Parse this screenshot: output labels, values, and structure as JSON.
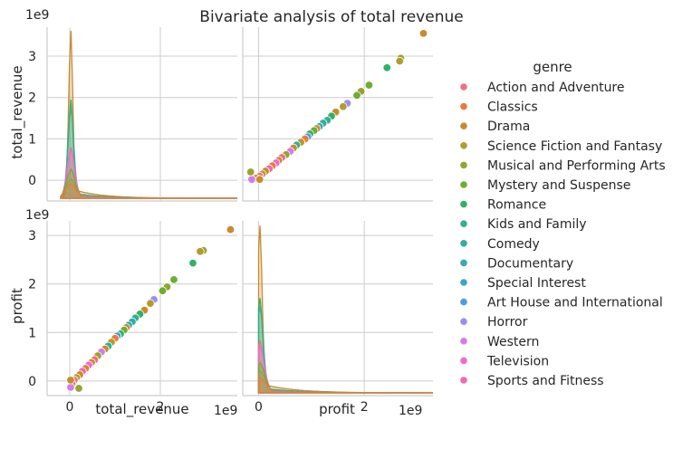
{
  "chart_data": {
    "type": "scatter",
    "title": "Bivariate  analysis of total revenue",
    "variables": [
      "total_revenue",
      "profit"
    ],
    "offset_label": "1e9",
    "x_ticks": [
      0,
      2
    ],
    "total_revenue_ticks": [
      0,
      1,
      2,
      3
    ],
    "profit_ticks": [
      0,
      1,
      2,
      3
    ],
    "ranges": {
      "total_revenue": [
        -0.5,
        3.7
      ],
      "profit": [
        -0.3,
        3.3
      ]
    },
    "grid": true,
    "legend": {
      "title": "genre",
      "placement": "right",
      "entries": [
        {
          "name": "Action and Adventure",
          "color": "#f0717e"
        },
        {
          "name": "Classics",
          "color": "#e57d3d"
        },
        {
          "name": "Drama",
          "color": "#c98b2f"
        },
        {
          "name": "Science Fiction and Fantasy",
          "color": "#b39b2e"
        },
        {
          "name": "Musical and Performing Arts",
          "color": "#97a432"
        },
        {
          "name": "Mystery and Suspense",
          "color": "#6ead34"
        },
        {
          "name": "Romance",
          "color": "#33b067"
        },
        {
          "name": "Kids and Family",
          "color": "#35ae94"
        },
        {
          "name": "Comedy",
          "color": "#37ab9f"
        },
        {
          "name": "Documentary",
          "color": "#39a8b0"
        },
        {
          "name": "Special Interest",
          "color": "#3ca5c5"
        },
        {
          "name": "Art House and International",
          "color": "#4a9de0"
        },
        {
          "name": "Horror",
          "color": "#9b8ef0"
        },
        {
          "name": "Western",
          "color": "#d67be8"
        },
        {
          "name": "Television",
          "color": "#f16ad1"
        },
        {
          "name": "Sports and Fitness",
          "color": "#f06ba9"
        }
      ]
    },
    "scatter_points": [
      {
        "total_revenue": 3.55,
        "profit": 3.12,
        "genre": "Drama"
      },
      {
        "total_revenue": 2.95,
        "profit": 2.69,
        "genre": "Musical and Performing Arts"
      },
      {
        "total_revenue": 2.88,
        "profit": 2.67,
        "genre": "Science Fiction and Fantasy"
      },
      {
        "total_revenue": 2.72,
        "profit": 2.43,
        "genre": "Romance"
      },
      {
        "total_revenue": 2.3,
        "profit": 2.09,
        "genre": "Mystery and Suspense"
      },
      {
        "total_revenue": 2.15,
        "profit": 1.94,
        "genre": "Musical and Performing Arts"
      },
      {
        "total_revenue": 2.05,
        "profit": 1.86,
        "genre": "Mystery and Suspense"
      },
      {
        "total_revenue": 1.86,
        "profit": 1.68,
        "genre": "Horror"
      },
      {
        "total_revenue": 1.78,
        "profit": 1.6,
        "genre": "Science Fiction and Fantasy"
      },
      {
        "total_revenue": 1.65,
        "profit": 1.46,
        "genre": "Drama"
      },
      {
        "total_revenue": 1.55,
        "profit": 1.38,
        "genre": "Romance"
      },
      {
        "total_revenue": 1.45,
        "profit": 1.3,
        "genre": "Kids and Family"
      },
      {
        "total_revenue": 1.38,
        "profit": 1.22,
        "genre": "Comedy"
      },
      {
        "total_revenue": 1.3,
        "profit": 1.15,
        "genre": "Documentary"
      },
      {
        "total_revenue": 1.25,
        "profit": 1.1,
        "genre": "Drama"
      },
      {
        "total_revenue": 1.2,
        "profit": 1.05,
        "genre": "Mystery and Suspense"
      },
      {
        "total_revenue": 1.12,
        "profit": 0.97,
        "genre": "Romance"
      },
      {
        "total_revenue": 1.05,
        "profit": 0.93,
        "genre": "Art House and International"
      },
      {
        "total_revenue": 1.0,
        "profit": 0.88,
        "genre": "Classics"
      },
      {
        "total_revenue": 0.92,
        "profit": 0.8,
        "genre": "Science Fiction and Fantasy"
      },
      {
        "total_revenue": 0.85,
        "profit": 0.72,
        "genre": "Kids and Family"
      },
      {
        "total_revenue": 0.78,
        "profit": 0.66,
        "genre": "Drama"
      },
      {
        "total_revenue": 0.7,
        "profit": 0.6,
        "genre": "Western"
      },
      {
        "total_revenue": 0.62,
        "profit": 0.52,
        "genre": "Musical and Performing Arts"
      },
      {
        "total_revenue": 0.55,
        "profit": 0.44,
        "genre": "Action and Adventure"
      },
      {
        "total_revenue": 0.48,
        "profit": 0.38,
        "genre": "Drama"
      },
      {
        "total_revenue": 0.42,
        "profit": 0.33,
        "genre": "Television"
      },
      {
        "total_revenue": 0.35,
        "profit": 0.26,
        "genre": "Classics"
      },
      {
        "total_revenue": 0.28,
        "profit": 0.2,
        "genre": "Sports and Fitness"
      },
      {
        "total_revenue": 0.22,
        "profit": 0.13,
        "genre": "Drama"
      },
      {
        "total_revenue": 0.15,
        "profit": 0.07,
        "genre": "Science Fiction and Fantasy"
      },
      {
        "total_revenue": 0.1,
        "profit": 0.02,
        "genre": "Action and Adventure"
      },
      {
        "total_revenue": 0.05,
        "profit": -0.05,
        "genre": "Classics"
      },
      {
        "total_revenue": 0.02,
        "profit": -0.13,
        "genre": "Western"
      },
      {
        "total_revenue": 0.2,
        "profit": -0.15,
        "genre": "Musical and Performing Arts"
      },
      {
        "total_revenue": 0.02,
        "profit": 0.02,
        "genre": "Drama"
      }
    ],
    "kde_curves": [
      {
        "genre": "Drama",
        "peak_total_revenue": 3.5,
        "peak_profit": 3.1
      },
      {
        "genre": "Romance",
        "peak_total_revenue": 2.05,
        "peak_profit": 1.75
      },
      {
        "genre": "Kids and Family",
        "peak_total_revenue": 1.9,
        "peak_profit": 1.6
      },
      {
        "genre": "Action and Adventure",
        "peak_total_revenue": 1.05,
        "peak_profit": 0.95
      },
      {
        "genre": "Television",
        "peak_total_revenue": 1.0,
        "peak_profit": 0.85
      },
      {
        "genre": "Mystery and Suspense",
        "peak_total_revenue": 0.6,
        "peak_profit": 0.55
      },
      {
        "genre": "Musical and Performing Arts",
        "peak_total_revenue": 0.4,
        "peak_profit": 0.4
      },
      {
        "genre": "Classics",
        "peak_total_revenue": 0.3,
        "peak_profit": 0.28
      }
    ]
  }
}
